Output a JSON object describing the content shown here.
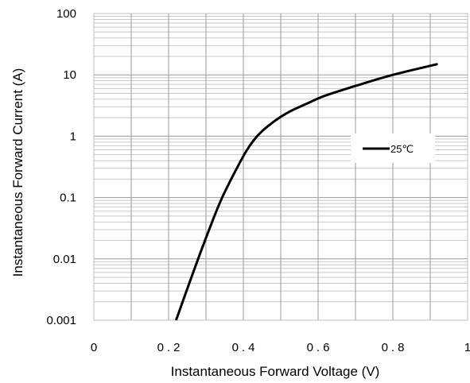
{
  "chart_data": {
    "type": "line",
    "title": "",
    "xlabel": "Instantaneous Forward Voltage (V)",
    "ylabel": "Instantaneous Forward Current (A)",
    "xlim": [
      0,
      1
    ],
    "ylim": [
      0.001,
      100
    ],
    "y_scale": "log",
    "grid": true,
    "legend_position": "right",
    "x_ticks": [
      {
        "value": 0,
        "label": "0"
      },
      {
        "value": 0.2,
        "label": "0.2"
      },
      {
        "value": 0.4,
        "label": "0.4"
      },
      {
        "value": 0.6,
        "label": "0.6"
      },
      {
        "value": 0.8,
        "label": "0.8"
      },
      {
        "value": 1,
        "label": "1"
      }
    ],
    "y_ticks": [
      {
        "value": 0.001,
        "label": "0.001"
      },
      {
        "value": 0.01,
        "label": "0.01"
      },
      {
        "value": 0.1,
        "label": "0.1"
      },
      {
        "value": 1,
        "label": "1"
      },
      {
        "value": 10,
        "label": "10"
      },
      {
        "value": 100,
        "label": "100"
      }
    ],
    "series": [
      {
        "name": "25℃",
        "color": "#000000",
        "x": [
          0.22,
          0.26,
          0.3,
          0.34,
          0.38,
          0.41,
          0.44,
          0.48,
          0.52,
          0.57,
          0.62,
          0.7,
          0.8,
          0.92
        ],
        "y": [
          0.001,
          0.0048,
          0.022,
          0.09,
          0.28,
          0.6,
          1.05,
          1.7,
          2.45,
          3.4,
          4.6,
          6.6,
          10.0,
          15.0
        ]
      }
    ]
  }
}
